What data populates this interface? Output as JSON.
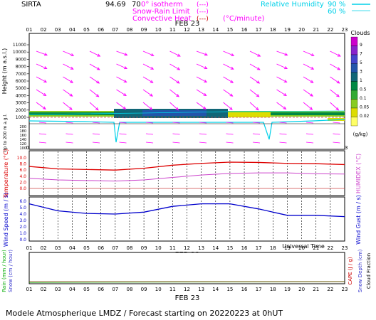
{
  "header": {
    "station": "SIRTA",
    "code_prefix": "94.69",
    "code_suffix": "70",
    "isotherm_label": "0° isotherm",
    "isotherm_sample": "(---)",
    "snow_rain_label": "Snow-Rain Limit",
    "snow_rain_sample": "(---)",
    "convective_label": "Convective Heat",
    "convective_sample": "(---)",
    "convective_unit": "(°C/minute)",
    "rh_label": "Relative Humidity",
    "rh_90": "90 %",
    "rh_60": "60 %"
  },
  "date_label": "FEB 23",
  "hours": [
    "01",
    "02",
    "03",
    "04",
    "05",
    "06",
    "07",
    "08",
    "09",
    "10",
    "11",
    "12",
    "13",
    "14",
    "15",
    "16",
    "17",
    "18",
    "19",
    "20",
    "21",
    "22",
    "23"
  ],
  "footer": {
    "credit": "Modele Atmospherique LMDZ / Forecast starting on 20220223 at 0hUT",
    "time_axis": "Universal Time"
  },
  "colors": {
    "wind_arrow": "#ff00ff",
    "temperature": "#dd0000",
    "humidex": "#cc44cc",
    "wind_speed": "#0000cc",
    "rh": "#00d0e8",
    "rain": "#00aa00",
    "snow": "#3333cc",
    "cape": "#cc0000"
  },
  "clouds_legend": {
    "title": "Clouds",
    "unit": "(g/kg)",
    "ticks": [
      "9",
      "7",
      "5",
      "3",
      "1",
      "0.5",
      "0.1",
      "0.05",
      "0.02"
    ],
    "colors": [
      "#cc00cc",
      "#8822cc",
      "#4444cc",
      "#2255aa",
      "#116677",
      "#008844",
      "#33aa33",
      "#88cc22",
      "#dddd00",
      "#ffff66"
    ]
  },
  "chart_data": [
    {
      "type": "vector",
      "ylabel": "Height (m a.s.l.)",
      "y_ticks": [
        "11000",
        "10000",
        "9000",
        "8000",
        "7000",
        "6000",
        "5000",
        "4000",
        "3000",
        "2000",
        "1000"
      ],
      "y_ticks_low": [
        "200",
        "180",
        "160",
        "140",
        "120",
        "100"
      ],
      "ylabel_low": "Up to 200 m a.g.l.",
      "wind_direction_deg": [
        235,
        245,
        250,
        255
      ],
      "note": ""
    },
    {
      "type": "line",
      "ylabel": "Temperature (°C)",
      "ylabel_right": "HUMIDEX (°C)",
      "y_ticks": [
        "10.0",
        "8.0",
        "6.0",
        "4.0",
        "2.0",
        "0.0"
      ],
      "ylim": [
        0,
        10
      ],
      "x": [
        1,
        3,
        5,
        7,
        9,
        11,
        13,
        15,
        17,
        19,
        21,
        23
      ],
      "series": [
        {
          "name": "Temperature",
          "values": [
            7.2,
            6.4,
            6.2,
            6.0,
            6.6,
            7.6,
            8.2,
            8.6,
            8.5,
            8.2,
            8.1,
            7.8
          ]
        },
        {
          "name": "Humidex",
          "values": [
            3.3,
            2.8,
            2.6,
            2.4,
            2.8,
            3.6,
            4.4,
            4.9,
            5.1,
            5.1,
            4.8,
            4.7
          ]
        }
      ]
    },
    {
      "type": "line",
      "ylabel": "Wind Speed (m / s)",
      "ylabel_right": "Wind Gust (m / s)",
      "y_ticks": [
        "6.0",
        "5.0",
        "4.0",
        "3.0",
        "2.0",
        "1.0",
        "0.0"
      ],
      "ylim": [
        0,
        6
      ],
      "x": [
        1,
        3,
        5,
        7,
        9,
        11,
        13,
        15,
        17,
        19,
        21,
        23
      ],
      "series": [
        {
          "name": "Wind Speed",
          "values": [
            5.6,
            4.5,
            4.1,
            4.0,
            4.3,
            5.2,
            5.6,
            5.6,
            4.8,
            3.8,
            3.8,
            3.6
          ]
        }
      ]
    },
    {
      "type": "line",
      "ylabel": "Rain (mm / hour)",
      "ylabel2": "Snow (cm / hour)",
      "ylabel_right": "CAPE (J / g)",
      "ylabel_right2": "Snow Depth (cm)",
      "ylabel_right3": "Cloud Fraction",
      "x": [
        1,
        23
      ],
      "series": [
        {
          "name": "Rain",
          "values": [
            0,
            0
          ]
        }
      ]
    }
  ]
}
